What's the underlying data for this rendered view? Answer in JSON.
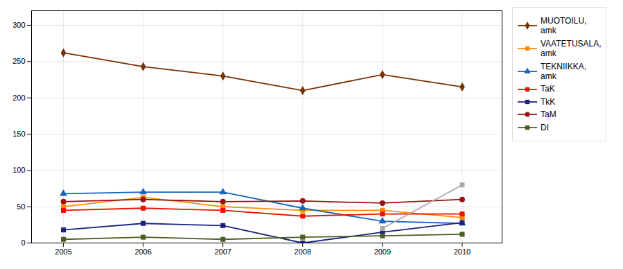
{
  "chart_data": {
    "type": "line",
    "x": [
      2005,
      2006,
      2007,
      2008,
      2009,
      2010
    ],
    "series": [
      {
        "name": "MUOTOILU,\namk",
        "color": "#7B3000",
        "marker": "diamond",
        "values": [
          262,
          243,
          230,
          210,
          232,
          215
        ]
      },
      {
        "name": "VAATETUSALA,\namk",
        "color": "#FF8C00",
        "marker": "square",
        "values": [
          50,
          63,
          50,
          45,
          45,
          35
        ]
      },
      {
        "name": "TEKNIIKKA,\namk",
        "color": "#1565C0",
        "marker": "triangle",
        "values": [
          68,
          70,
          70,
          48,
          30,
          27
        ]
      },
      {
        "name": "TaK",
        "color": "#EE1100",
        "marker": "square",
        "values": [
          45,
          48,
          45,
          37,
          40,
          40
        ]
      },
      {
        "name": "TkK",
        "color": "#1A237E",
        "marker": "square",
        "values": [
          18,
          27,
          24,
          0,
          15,
          28
        ]
      },
      {
        "name": "TaM",
        "color": "#9B1010",
        "marker": "circle",
        "values": [
          57,
          60,
          57,
          58,
          55,
          60
        ]
      },
      {
        "name": "DI",
        "color": "#4A5E23",
        "marker": "square",
        "values": [
          5,
          8,
          5,
          8,
          10,
          12
        ]
      },
      {
        "color": "#AAAAAA",
        "marker": "square",
        "values": [
          null,
          null,
          null,
          null,
          20,
          80
        ]
      }
    ],
    "xlim": [
      2004.6,
      2010.5
    ],
    "xticks": [
      2005,
      2006,
      2007,
      2008,
      2009,
      2010
    ],
    "ylim": [
      0,
      320
    ],
    "yticks": [
      0,
      50,
      100,
      150,
      200,
      250,
      300
    ],
    "grid": true,
    "legend": "right"
  }
}
